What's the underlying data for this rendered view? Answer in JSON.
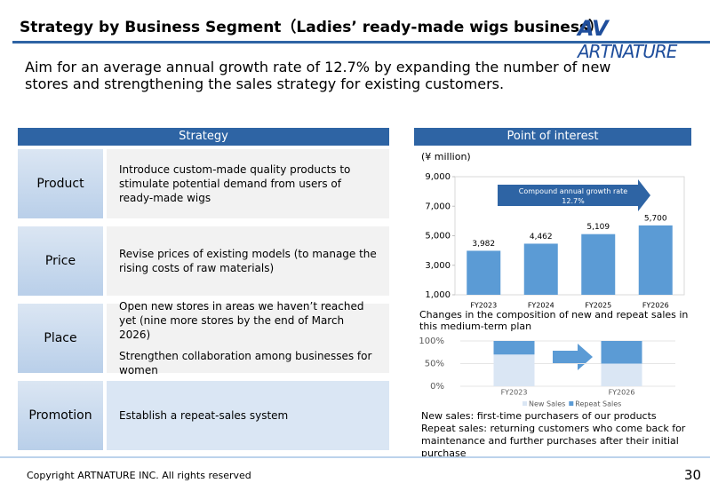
{
  "header": {
    "title": "Strategy by Business Segment（Ladies’ ready-made wigs business）",
    "logo": "ARTNATURE"
  },
  "subtitle": "Aim for an average annual growth rate of 12.7% by expanding the number of new stores and strengthening the sales strategy for existing customers.",
  "strategy": {
    "header": "Strategy",
    "rows": [
      {
        "label": "Product",
        "texts": [
          "Introduce custom-made quality products to stimulate potential demand from users of ready-made wigs"
        ]
      },
      {
        "label": "Price",
        "texts": [
          "Revise prices of existing models (to manage the rising costs of raw materials)"
        ]
      },
      {
        "label": "Place",
        "texts": [
          "Open new stores in areas we haven’t reached yet (nine more stores by the end of March 2026)",
          "Strengthen collaboration among  businesses for women"
        ]
      },
      {
        "label": "Promotion",
        "texts": [
          "Establish a repeat-sales system"
        ]
      }
    ]
  },
  "point_of_interest": {
    "header": "Point of interest"
  },
  "chart_data": [
    {
      "type": "bar",
      "unit_label": "(¥ million)",
      "annotation": "Compound annual growth rate 12.7%",
      "categories": [
        "FY2023",
        "FY2024",
        "FY2025",
        "FY2026"
      ],
      "values": [
        3982,
        4462,
        5109,
        5700
      ],
      "value_labels": [
        "3,982",
        "4,462",
        "5,109",
        "5,700"
      ],
      "color": "#5b9bd5",
      "ylim": [
        1000,
        9000
      ],
      "yticks": [
        {
          "value": 1000,
          "label": "1,000"
        },
        {
          "value": 3000,
          "label": "3,000"
        },
        {
          "value": 5000,
          "label": "5,000"
        },
        {
          "value": 7000,
          "label": "7,000"
        },
        {
          "value": 9000,
          "label": "9,000"
        }
      ]
    },
    {
      "type": "stacked_bar",
      "title": "Changes in the composition of new and repeat sales in this medium-term plan",
      "categories": [
        "FY2023",
        "FY2026"
      ],
      "series": [
        {
          "name": "New Sales",
          "color": "#dae6f4",
          "values": [
            70,
            50
          ]
        },
        {
          "name": "Repeat Sales",
          "color": "#5b9bd5",
          "values": [
            30,
            50
          ]
        }
      ],
      "ylim": [
        0,
        100
      ],
      "yticks": [
        {
          "value": 0,
          "label": "0%"
        },
        {
          "value": 50,
          "label": "50%"
        },
        {
          "value": 100,
          "label": "100%"
        }
      ],
      "legend": "bottom"
    }
  ],
  "notes": [
    "New sales: first-time purchasers of our products",
    "Repeat sales: returning customers who come back for maintenance and further purchases after their initial purchase"
  ],
  "footer": {
    "copyright": "Copyright ARTNATURE INC. All rights reserved",
    "page": "30"
  }
}
